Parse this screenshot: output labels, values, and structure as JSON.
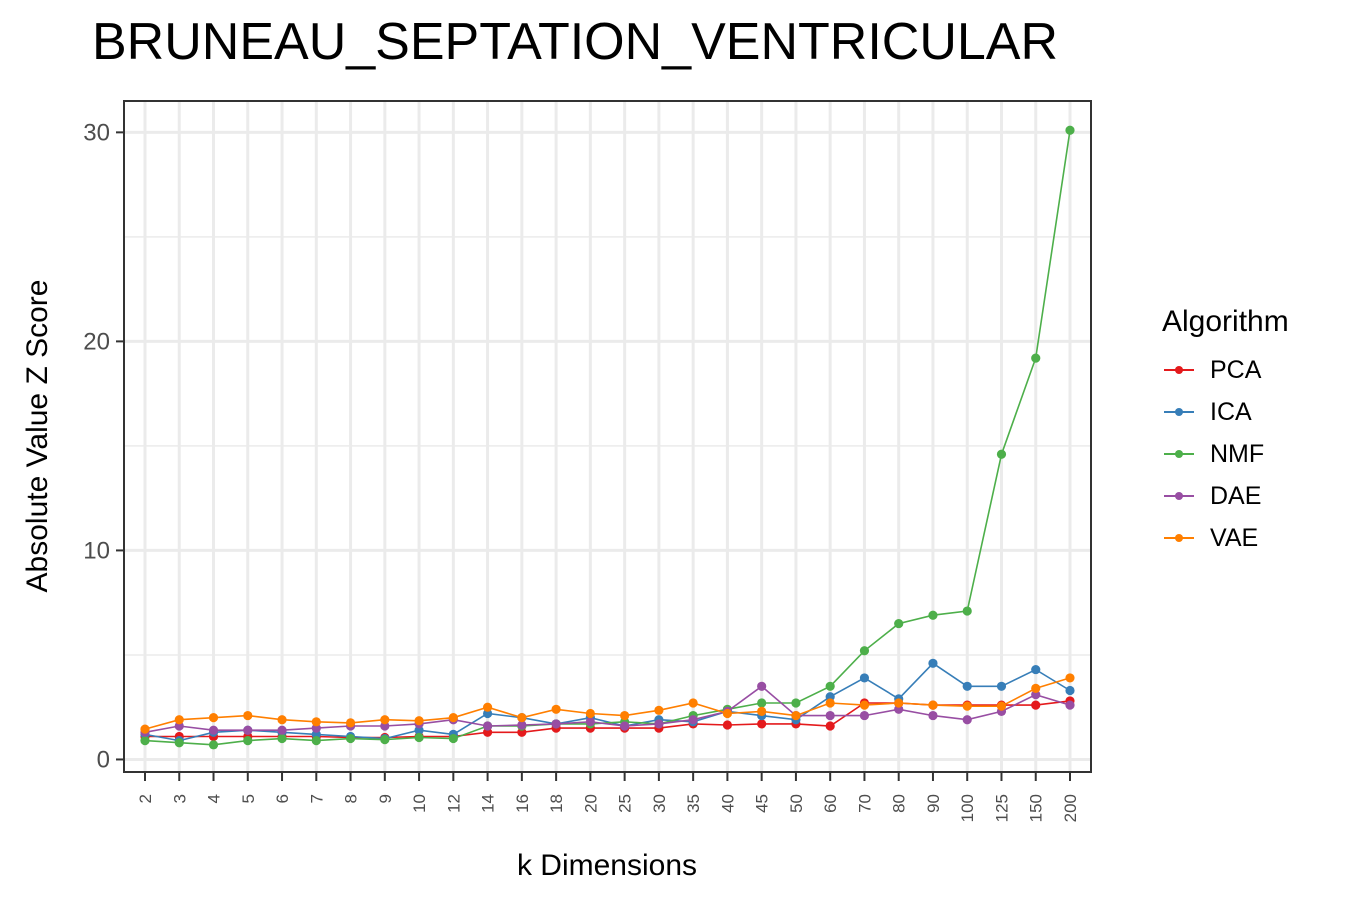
{
  "chart_data": {
    "type": "line",
    "title": "BRUNEAU_SEPTATION_VENTRICULAR",
    "xlabel": "k Dimensions",
    "ylabel": "Absolute Value Z Score",
    "categories": [
      "2",
      "3",
      "4",
      "5",
      "6",
      "7",
      "8",
      "9",
      "10",
      "12",
      "14",
      "16",
      "18",
      "20",
      "25",
      "30",
      "35",
      "40",
      "45",
      "50",
      "60",
      "70",
      "80",
      "90",
      "100",
      "125",
      "150",
      "200"
    ],
    "ylim": [
      -0.6,
      31.5
    ],
    "yticks": [
      0,
      10,
      20,
      30
    ],
    "grid": true,
    "legend_title": "Algorithm",
    "legend_position": "right",
    "series": [
      {
        "name": "PCA",
        "color": "#e41a1c",
        "values": [
          1.1,
          1.1,
          1.1,
          1.1,
          1.1,
          1.1,
          1.05,
          1.05,
          1.1,
          1.1,
          1.3,
          1.3,
          1.5,
          1.5,
          1.5,
          1.5,
          1.7,
          1.65,
          1.7,
          1.7,
          1.6,
          2.7,
          2.7,
          2.6,
          2.6,
          2.6,
          2.6,
          2.8
        ]
      },
      {
        "name": "ICA",
        "color": "#377eb8",
        "values": [
          1.2,
          0.9,
          1.3,
          1.4,
          1.3,
          1.2,
          1.1,
          1.0,
          1.4,
          1.2,
          2.2,
          2.0,
          1.7,
          2.0,
          1.6,
          1.9,
          1.8,
          2.3,
          2.1,
          1.9,
          3.0,
          3.9,
          2.9,
          4.6,
          3.5,
          3.5,
          4.3,
          3.3
        ]
      },
      {
        "name": "NMF",
        "color": "#4daf4a",
        "values": [
          0.9,
          0.8,
          0.7,
          0.9,
          1.0,
          0.9,
          1.0,
          0.95,
          1.05,
          1.0,
          1.6,
          1.6,
          1.7,
          1.7,
          1.8,
          1.7,
          2.1,
          2.4,
          2.7,
          2.7,
          3.5,
          5.2,
          6.5,
          6.9,
          7.1,
          14.6,
          19.2,
          30.1
        ]
      },
      {
        "name": "DAE",
        "color": "#984ea3",
        "values": [
          1.3,
          1.6,
          1.4,
          1.4,
          1.4,
          1.5,
          1.6,
          1.6,
          1.7,
          1.9,
          1.6,
          1.65,
          1.7,
          1.8,
          1.6,
          1.7,
          1.9,
          2.3,
          3.5,
          2.1,
          2.1,
          2.1,
          2.4,
          2.1,
          1.9,
          2.3,
          3.1,
          2.6
        ]
      },
      {
        "name": "VAE",
        "color": "#ff7f00",
        "values": [
          1.45,
          1.9,
          2.0,
          2.1,
          1.9,
          1.8,
          1.75,
          1.9,
          1.85,
          2.0,
          2.5,
          2.0,
          2.4,
          2.2,
          2.1,
          2.35,
          2.7,
          2.2,
          2.3,
          2.1,
          2.7,
          2.6,
          2.7,
          2.6,
          2.55,
          2.55,
          3.4,
          3.9
        ]
      }
    ]
  }
}
